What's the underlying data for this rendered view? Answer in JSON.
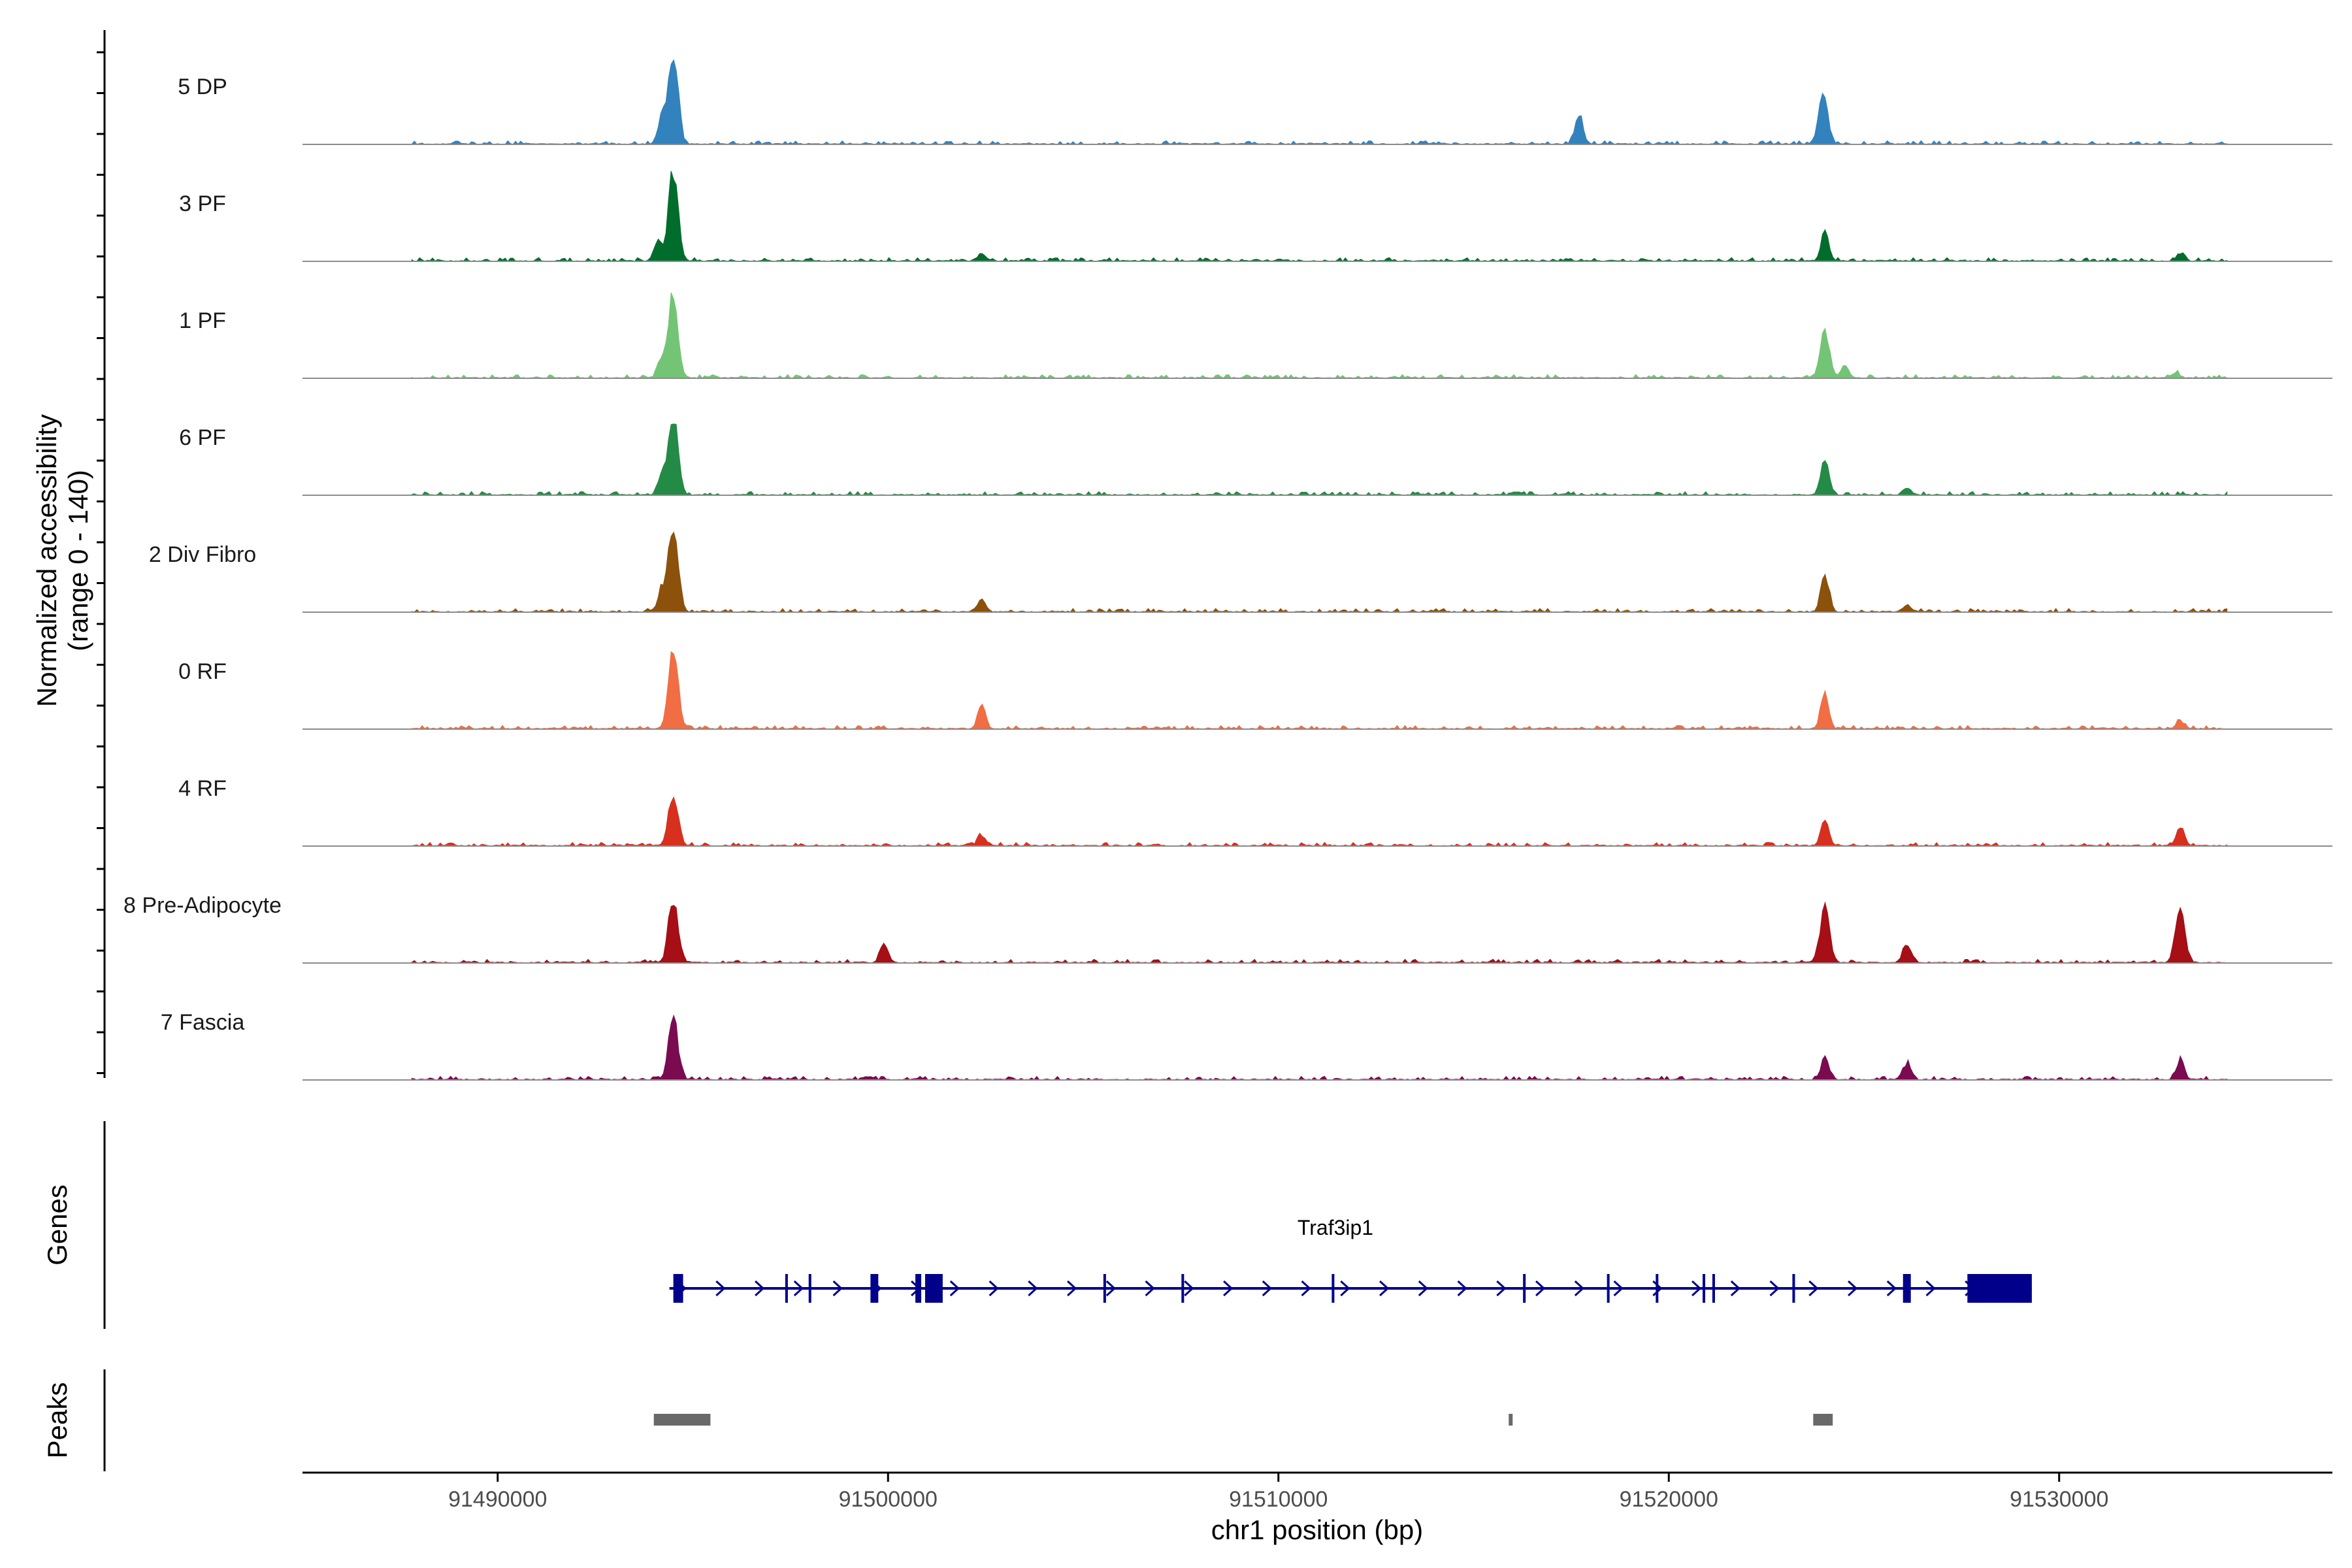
{
  "chart_data": {
    "type": "coverage",
    "ylabel_line1": "Normalized accessibility",
    "ylabel_line2": "(range 0 - 140)",
    "xlabel": "chr1 position (bp)",
    "xlim": [
      91485000,
      91537000
    ],
    "ylim": [
      0,
      140
    ],
    "x_ticks": [
      91490000,
      91500000,
      91510000,
      91520000,
      91530000
    ],
    "x_tick_labels": [
      "91490000",
      "91500000",
      "91510000",
      "91520000",
      "91530000"
    ],
    "genes_label": "Genes",
    "peaks_label": "Peaks",
    "tracks": [
      {
        "name": "5 DP",
        "color": "#3182BD",
        "peaks": [
          [
            91494500,
            140
          ],
          [
            91494200,
            40
          ],
          [
            91517700,
            45
          ],
          [
            91523950,
            70
          ]
        ]
      },
      {
        "name": "3 PF",
        "color": "#006D2C",
        "peaks": [
          [
            91494500,
            140
          ],
          [
            91494100,
            30
          ],
          [
            91502400,
            12
          ],
          [
            91524000,
            45
          ],
          [
            91533100,
            12
          ]
        ]
      },
      {
        "name": "1 PF",
        "color": "#74C476",
        "peaks": [
          [
            91494500,
            130
          ],
          [
            91494200,
            30
          ],
          [
            91524000,
            75
          ],
          [
            91524500,
            18
          ],
          [
            91533000,
            8
          ]
        ]
      },
      {
        "name": "6 PF",
        "color": "#238B45",
        "peaks": [
          [
            91494500,
            120
          ],
          [
            91494200,
            30
          ],
          [
            91524000,
            60
          ],
          [
            91526100,
            12
          ]
        ]
      },
      {
        "name": "2 Div Fibro",
        "color": "#8C510A",
        "peaks": [
          [
            91494500,
            140
          ],
          [
            91494200,
            35
          ],
          [
            91502400,
            20
          ],
          [
            91524000,
            60
          ],
          [
            91526100,
            10
          ]
        ]
      },
      {
        "name": "0 RF",
        "color": "#F16D44",
        "peaks": [
          [
            91494500,
            120
          ],
          [
            91502400,
            35
          ],
          [
            91524000,
            55
          ],
          [
            91533100,
            12
          ]
        ]
      },
      {
        "name": "4 RF",
        "color": "#D7301F",
        "peaks": [
          [
            91494500,
            85
          ],
          [
            91502400,
            15
          ],
          [
            91524000,
            40
          ],
          [
            91533100,
            28
          ]
        ]
      },
      {
        "name": "8 Pre-Adipocyte",
        "color": "#A50F15",
        "peaks": [
          [
            91494500,
            100
          ],
          [
            91499900,
            30
          ],
          [
            91524000,
            85
          ],
          [
            91526100,
            30
          ],
          [
            91533100,
            85
          ]
        ]
      },
      {
        "name": "7 Fascia",
        "color": "#7A0B50",
        "peaks": [
          [
            91494500,
            95
          ],
          [
            91524000,
            35
          ],
          [
            91526100,
            25
          ],
          [
            91533100,
            30
          ]
        ]
      }
    ],
    "gene": {
      "name": "Traf3ip1",
      "color": "#00008B",
      "strand": "+",
      "start": 91494400,
      "end": 91529300,
      "exons": [
        [
          91494500,
          91494750
        ],
        [
          91499550,
          91499750
        ],
        [
          91500700,
          91500850
        ],
        [
          91500950,
          91501400
        ],
        [
          91526000,
          91526200
        ],
        [
          91527650,
          91529300
        ]
      ],
      "thin_exons": [
        91497400,
        91498000,
        91505550,
        91507550,
        91511400,
        91516300,
        91518450,
        91519700,
        91520900,
        91521150,
        91523200
      ]
    },
    "peak_regions": [
      [
        91494000,
        91495450
      ],
      [
        91515900,
        91516000
      ],
      [
        91523700,
        91524200
      ]
    ],
    "peak_color": "#696969"
  }
}
